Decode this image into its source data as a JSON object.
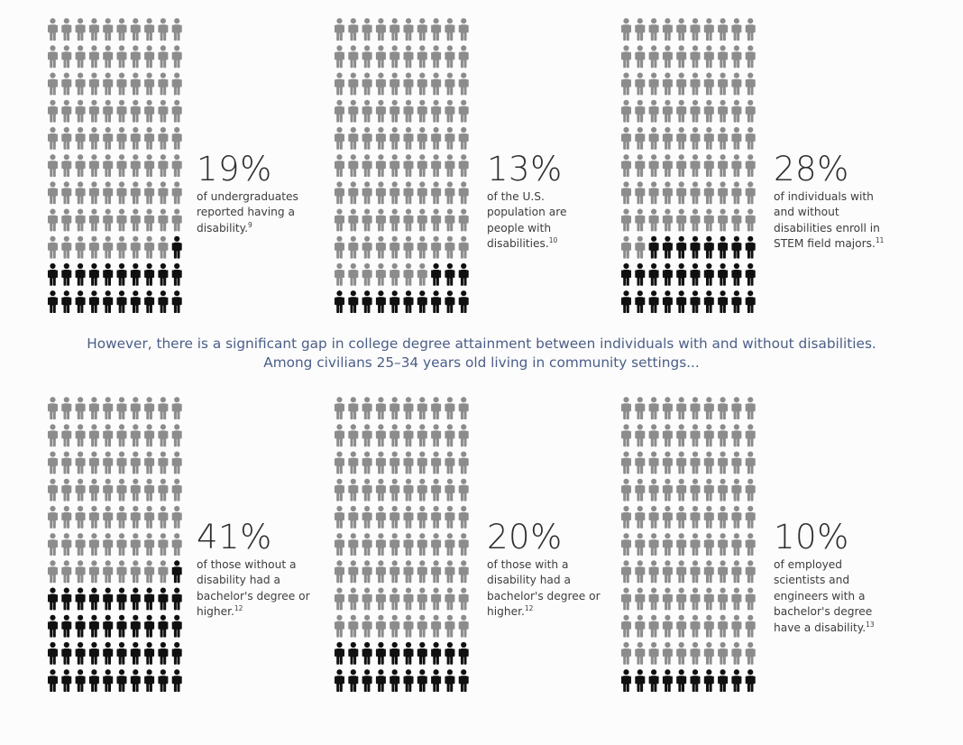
{
  "colors": {
    "not_highlighted": "#8c8c8c",
    "highlighted": "#101010",
    "bridge_text": "#4b5e87"
  },
  "icon_name": "person-icon",
  "bridge_text": {
    "line1": "However, there is a significant gap in college degree attainment between individuals with and without disabilities.",
    "line2": "Among civilians 25–34 years old living in community settings..."
  },
  "chart_data": [
    {
      "type": "pictogram",
      "rows": 11,
      "cols": 10,
      "highlighted_icons": 21,
      "value": "19%",
      "text": "of undergraduates reported having a disability.",
      "footnote": "9"
    },
    {
      "type": "pictogram",
      "rows": 11,
      "cols": 10,
      "highlighted_icons": 13,
      "value": "13%",
      "text": "of the U.S. population are people with disabilities.",
      "footnote": "10"
    },
    {
      "type": "pictogram",
      "rows": 11,
      "cols": 10,
      "highlighted_icons": 28,
      "value": "28%",
      "text": "of individuals with and without disabilities enroll in STEM field majors.",
      "footnote": "11"
    },
    {
      "type": "pictogram",
      "rows": 11,
      "cols": 10,
      "highlighted_icons": 41,
      "value": "41%",
      "text": "of those without a disability had a bachelor's degree or higher.",
      "footnote": "12"
    },
    {
      "type": "pictogram",
      "rows": 11,
      "cols": 10,
      "highlighted_icons": 20,
      "value": "20%",
      "text": "of those with a disability had a bachelor's degree or higher.",
      "footnote": "12"
    },
    {
      "type": "pictogram",
      "rows": 11,
      "cols": 10,
      "highlighted_icons": 10,
      "value": "10%",
      "text": "of employed scientists and engineers with a bachelor's degree have a disability.",
      "footnote": "13"
    }
  ]
}
